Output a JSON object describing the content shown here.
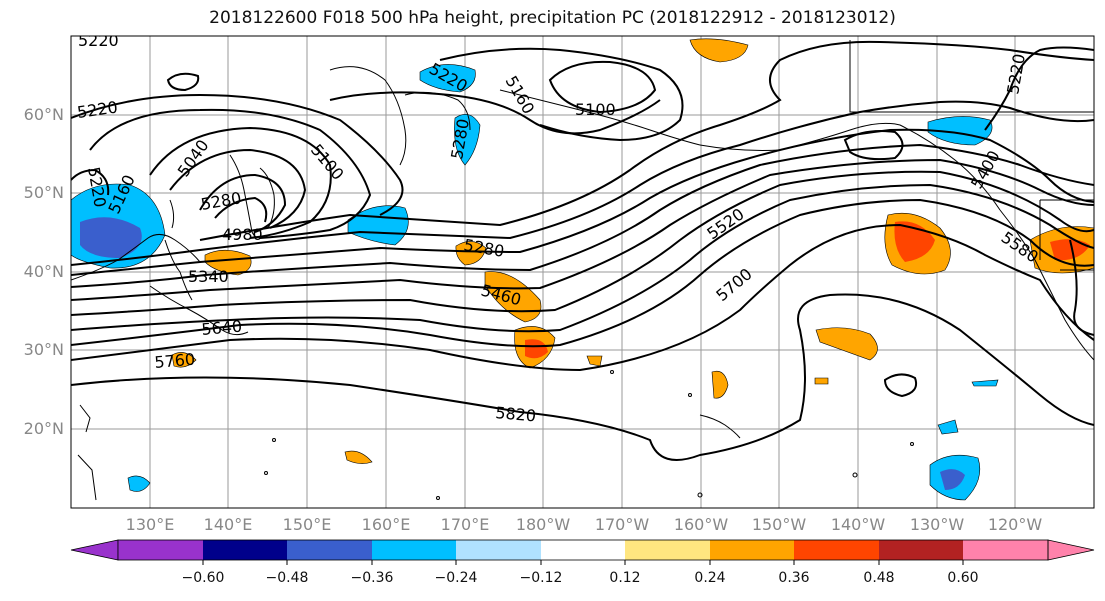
{
  "title": "2018122600 F018 500 hPa height, precipitation PC (2018122912 - 2018123012)",
  "lat_labels": [
    "60°N",
    "50°N",
    "40°N",
    "30°N",
    "20°N"
  ],
  "lon_labels": [
    "130°E",
    "140°E",
    "150°E",
    "160°E",
    "170°E",
    "180°W",
    "170°W",
    "160°W",
    "150°W",
    "140°W",
    "130°W",
    "120°W"
  ],
  "contour_labels": [
    "5220",
    "5220",
    "5220",
    "5160",
    "5100",
    "5100",
    "5040",
    "5160",
    "4980",
    "5340",
    "5280",
    "5280",
    "5220",
    "5280",
    "5460",
    "5520",
    "5640",
    "5700",
    "5760",
    "5820",
    "5580",
    "5400",
    "5220"
  ],
  "colorbar": {
    "tick_labels": [
      "−0.60",
      "−0.48",
      "−0.36",
      "−0.24",
      "−0.12",
      "0.12",
      "0.24",
      "0.36",
      "0.48",
      "0.60"
    ],
    "colors": [
      "#9932cc",
      "#00008b",
      "#3a5fcd",
      "#00bfff",
      "#b0e2ff",
      "#ffffff",
      "#ffe680",
      "#ffa500",
      "#ff4500",
      "#b22222",
      "#ff82ab"
    ]
  }
}
